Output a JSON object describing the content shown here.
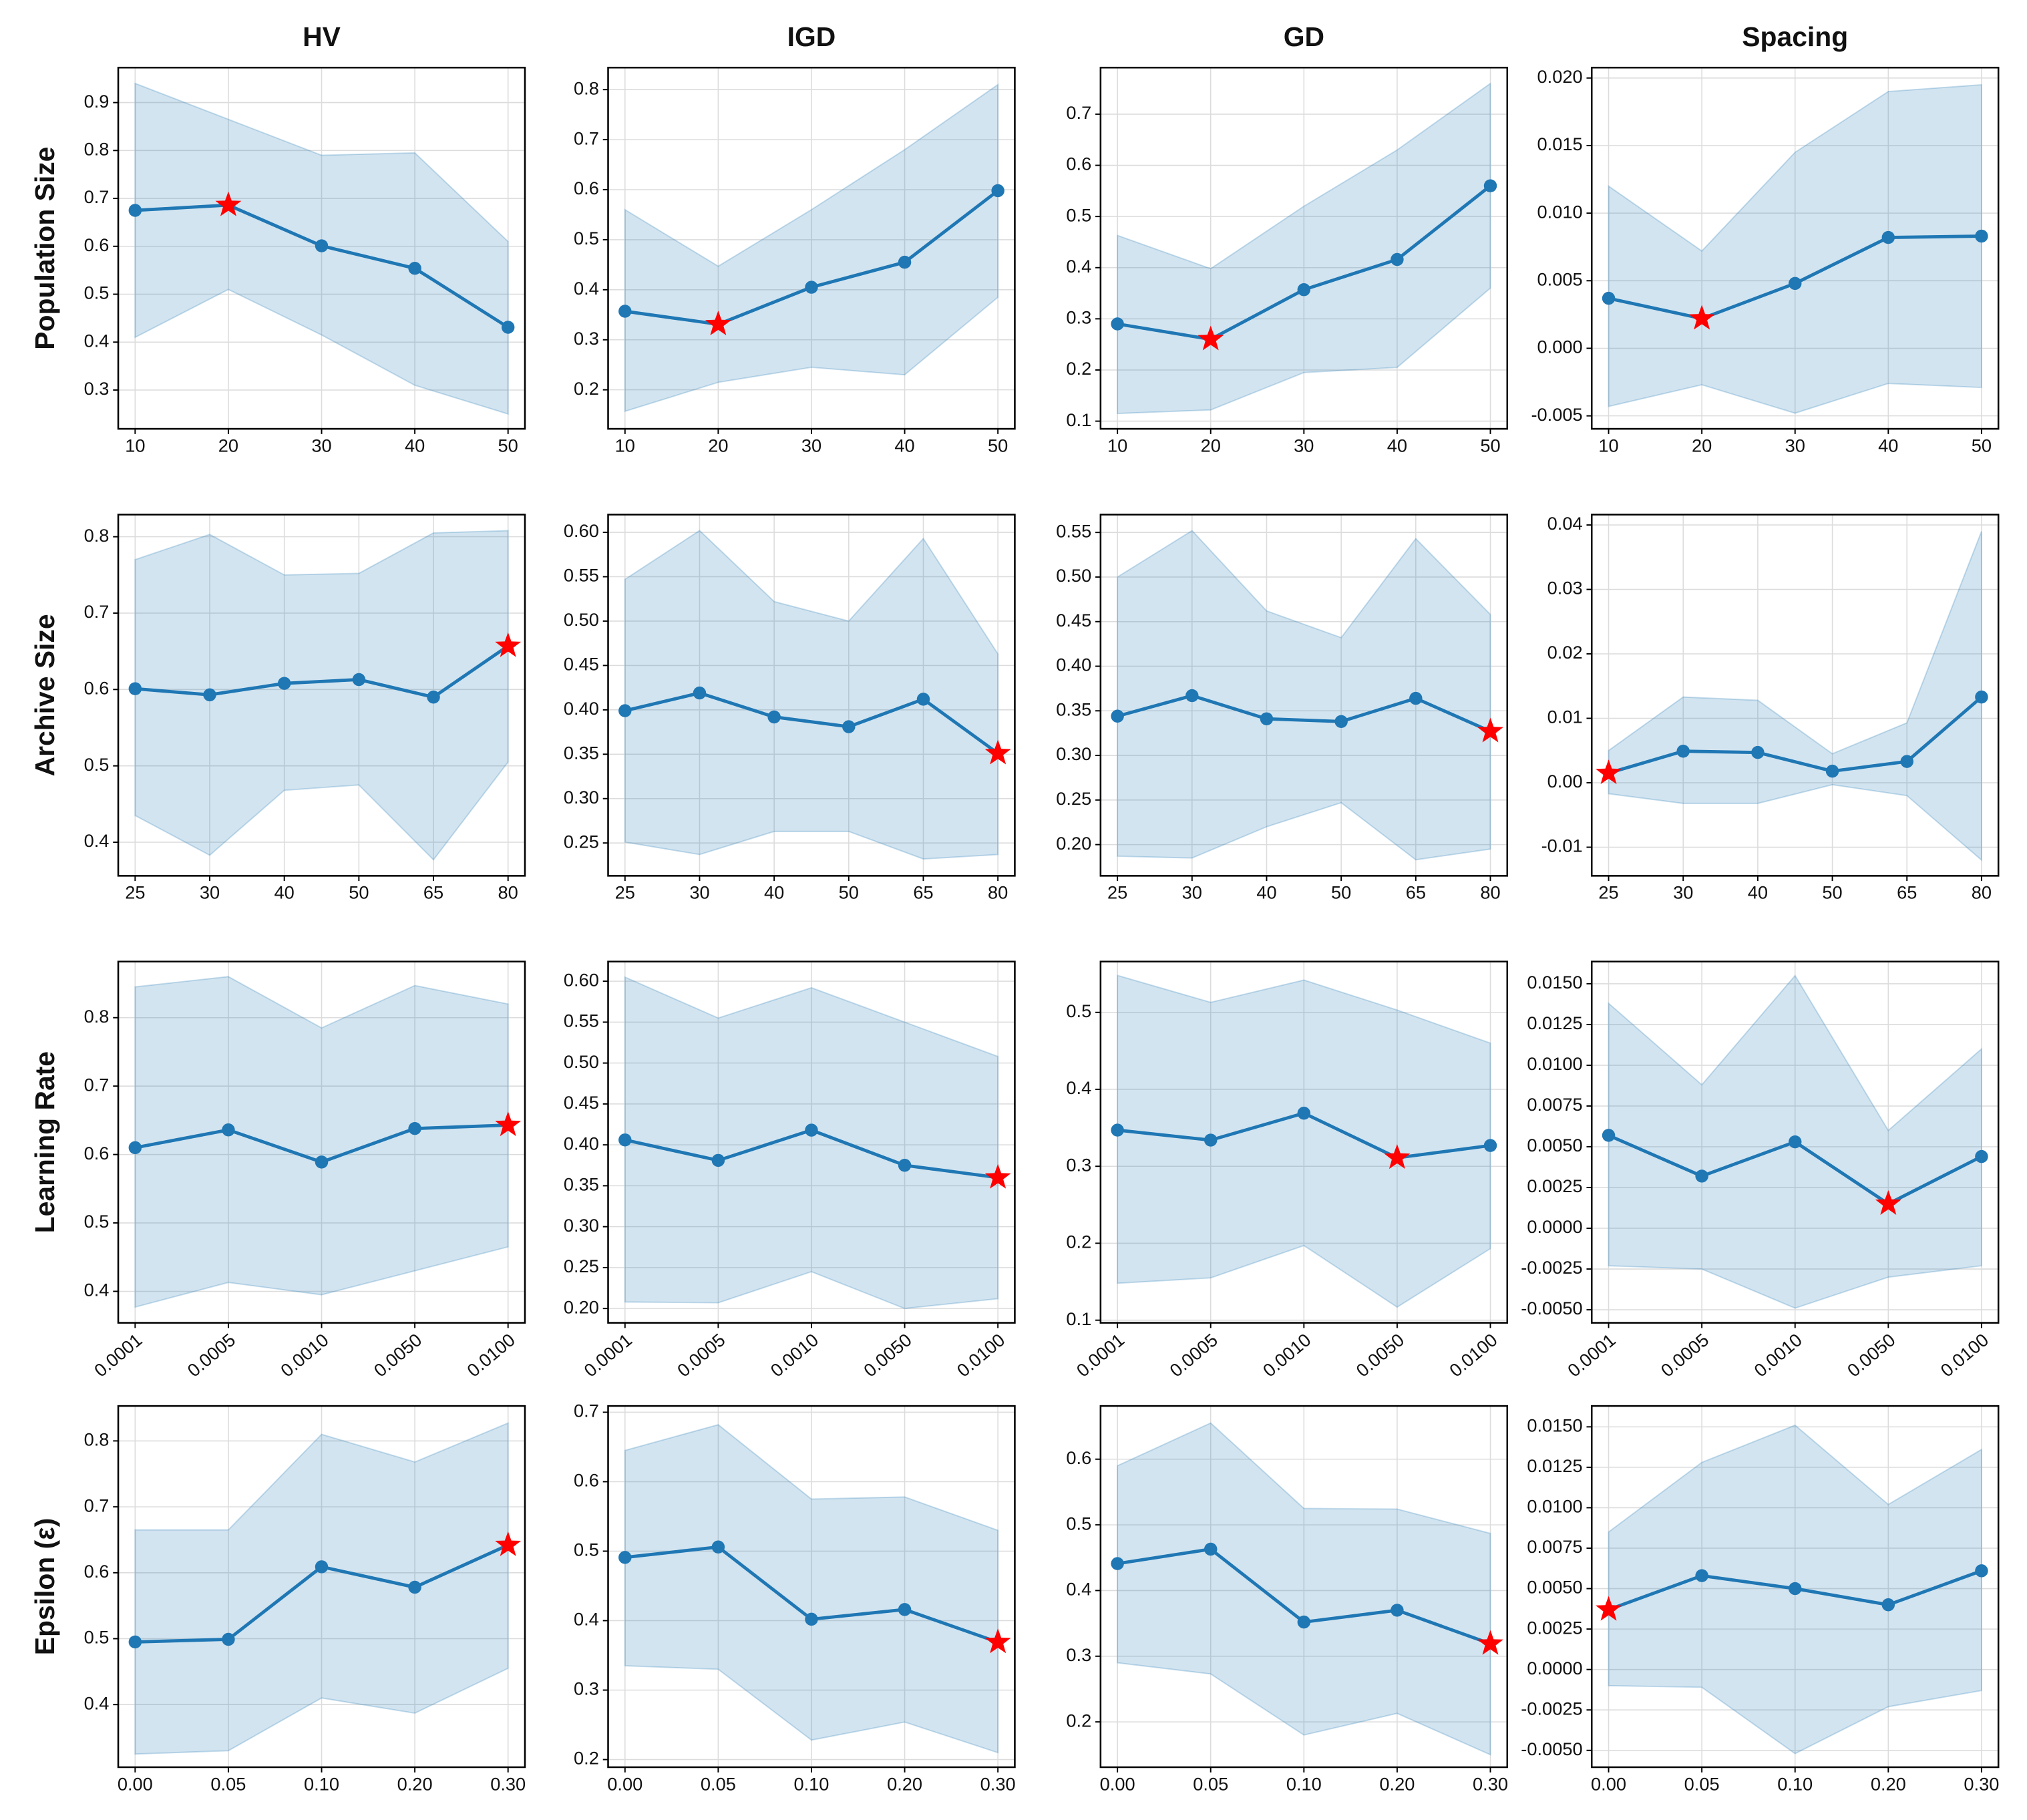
{
  "column_titles": [
    "HV",
    "IGD",
    "GD",
    "Spacing"
  ],
  "row_labels": [
    "Population Size",
    "Archive Size",
    "Learning Rate",
    "Epsilon (ε)"
  ],
  "chart_data": [
    {
      "type": "line",
      "categories": [
        "10",
        "20",
        "30",
        "40",
        "50"
      ],
      "values": [
        0.675,
        0.686,
        0.601,
        0.554,
        0.431
      ],
      "upper": [
        0.94,
        0.865,
        0.79,
        0.795,
        0.61
      ],
      "lower": [
        0.41,
        0.51,
        0.415,
        0.31,
        0.25
      ],
      "best_index": 1,
      "color": "#1f77b4",
      "best_color": "#ff0000",
      "grid": true,
      "ylim": [
        0.219,
        0.973
      ],
      "yticks": [
        0.3,
        0.4,
        0.5,
        0.6,
        0.7,
        0.8,
        0.9
      ]
    },
    {
      "type": "line",
      "categories": [
        "10",
        "20",
        "30",
        "40",
        "50"
      ],
      "values": [
        0.357,
        0.331,
        0.405,
        0.455,
        0.598
      ],
      "upper": [
        0.56,
        0.447,
        0.56,
        0.68,
        0.81
      ],
      "lower": [
        0.157,
        0.215,
        0.245,
        0.23,
        0.385
      ],
      "best_index": 1,
      "color": "#1f77b4",
      "best_color": "#ff0000",
      "grid": true,
      "ylim": [
        0.122,
        0.844
      ],
      "yticks": [
        0.2,
        0.3,
        0.4,
        0.5,
        0.6,
        0.7,
        0.8
      ]
    },
    {
      "type": "line",
      "categories": [
        "10",
        "20",
        "30",
        "40",
        "50"
      ],
      "values": [
        0.29,
        0.26,
        0.357,
        0.416,
        0.56
      ],
      "upper": [
        0.463,
        0.398,
        0.52,
        0.63,
        0.76
      ],
      "lower": [
        0.115,
        0.122,
        0.195,
        0.205,
        0.36
      ],
      "best_index": 1,
      "color": "#1f77b4",
      "best_color": "#ff0000",
      "grid": true,
      "ylim": [
        0.085,
        0.791
      ],
      "yticks": [
        0.1,
        0.2,
        0.3,
        0.4,
        0.5,
        0.6,
        0.7
      ]
    },
    {
      "type": "line",
      "categories": [
        "10",
        "20",
        "30",
        "40",
        "50"
      ],
      "values": [
        0.0037,
        0.0022,
        0.0048,
        0.0082,
        0.0083
      ],
      "upper": [
        0.012,
        0.0072,
        0.0145,
        0.019,
        0.0195
      ],
      "lower": [
        -0.0043,
        -0.0027,
        -0.0048,
        -0.0026,
        -0.0029
      ],
      "best_index": 1,
      "color": "#1f77b4",
      "best_color": "#ff0000",
      "grid": true,
      "ylim": [
        -0.00596,
        0.02077
      ],
      "yticks": [
        -0.005,
        {
          "value": 0,
          "label": "0.000"
        },
        {
          "value": 0.005,
          "label": "0.005"
        },
        {
          "value": 0.01,
          "label": "0.010"
        },
        {
          "value": 0.015,
          "label": "0.015"
        },
        {
          "value": 0.02,
          "label": "0.020"
        }
      ]
    },
    {
      "type": "line",
      "categories": [
        "25",
        "30",
        "40",
        "50",
        "65",
        "80"
      ],
      "values": [
        0.601,
        0.593,
        0.608,
        0.613,
        0.59,
        0.657
      ],
      "upper": [
        0.77,
        0.803,
        0.75,
        0.752,
        0.805,
        0.808
      ],
      "lower": [
        0.435,
        0.383,
        0.468,
        0.475,
        0.377,
        0.505
      ],
      "best_index": 5,
      "color": "#1f77b4",
      "best_color": "#ff0000",
      "grid": true,
      "ylim": [
        0.356,
        0.829
      ],
      "yticks": [
        0.4,
        0.5,
        0.6,
        0.7,
        0.8
      ]
    },
    {
      "type": "line",
      "categories": [
        "25",
        "30",
        "40",
        "50",
        "65",
        "80"
      ],
      "values": [
        0.399,
        0.419,
        0.392,
        0.381,
        0.412,
        0.351
      ],
      "upper": [
        0.547,
        0.602,
        0.522,
        0.5,
        0.593,
        0.463
      ],
      "lower": [
        0.251,
        0.237,
        0.263,
        0.263,
        0.232,
        0.237
      ],
      "best_index": 5,
      "color": "#1f77b4",
      "best_color": "#ff0000",
      "grid": true,
      "ylim": [
        0.213,
        0.62
      ],
      "yticks": [
        {
          "value": 0.25,
          "label": "0.25"
        },
        {
          "value": 0.3,
          "label": "0.30"
        },
        0.35,
        {
          "value": 0.4,
          "label": "0.40"
        },
        0.45,
        {
          "value": 0.5,
          "label": "0.50"
        },
        0.55,
        {
          "value": 0.6,
          "label": "0.60"
        }
      ]
    },
    {
      "type": "line",
      "categories": [
        "25",
        "30",
        "40",
        "50",
        "65",
        "80"
      ],
      "values": [
        0.344,
        0.367,
        0.341,
        0.338,
        0.364,
        0.327
      ],
      "upper": [
        0.5,
        0.552,
        0.462,
        0.432,
        0.543,
        0.458
      ],
      "lower": [
        0.187,
        0.185,
        0.22,
        0.247,
        0.183,
        0.195
      ],
      "best_index": 5,
      "color": "#1f77b4",
      "best_color": "#ff0000",
      "grid": true,
      "ylim": [
        0.165,
        0.57
      ],
      "yticks": [
        {
          "value": 0.2,
          "label": "0.20"
        },
        0.25,
        {
          "value": 0.3,
          "label": "0.30"
        },
        0.35,
        {
          "value": 0.4,
          "label": "0.40"
        },
        0.45,
        {
          "value": 0.5,
          "label": "0.50"
        },
        0.55
      ]
    },
    {
      "type": "line",
      "categories": [
        "25",
        "30",
        "40",
        "50",
        "65",
        "80"
      ],
      "values": [
        0.0015,
        0.0049,
        0.0047,
        0.0018,
        0.0033,
        0.0133
      ],
      "upper": [
        0.005,
        0.0133,
        0.0128,
        0.0045,
        0.0093,
        0.039
      ],
      "lower": [
        -0.0017,
        -0.0032,
        -0.0032,
        -0.0003,
        -0.002,
        -0.012
      ],
      "best_index": 0,
      "color": "#1f77b4",
      "best_color": "#ff0000",
      "grid": true,
      "ylim": [
        -0.01444,
        0.04161
      ],
      "yticks": [
        -0.01,
        {
          "value": 0,
          "label": "0.00"
        },
        0.01,
        0.02,
        0.03,
        0.04
      ]
    },
    {
      "type": "line",
      "categories": [
        "0.0001",
        "0.0005",
        "0.0010",
        "0.0050",
        "0.0100"
      ],
      "values": [
        0.61,
        0.636,
        0.589,
        0.638,
        0.643
      ],
      "upper": [
        0.845,
        0.86,
        0.785,
        0.847,
        0.82
      ],
      "lower": [
        0.377,
        0.413,
        0.395,
        0.43,
        0.465
      ],
      "best_index": 4,
      "color": "#1f77b4",
      "best_color": "#ff0000",
      "grid": true,
      "ylim": [
        0.354,
        0.882
      ],
      "yticks": [
        0.4,
        0.5,
        0.6,
        0.7,
        0.8
      ]
    },
    {
      "type": "line",
      "categories": [
        "0.0001",
        "0.0005",
        "0.0010",
        "0.0050",
        "0.0100"
      ],
      "values": [
        0.406,
        0.381,
        0.418,
        0.375,
        0.36
      ],
      "upper": [
        0.605,
        0.555,
        0.592,
        0.55,
        0.508
      ],
      "lower": [
        0.208,
        0.207,
        0.245,
        0.2,
        0.212
      ],
      "best_index": 4,
      "color": "#1f77b4",
      "best_color": "#ff0000",
      "grid": true,
      "ylim": [
        0.1825,
        0.624
      ],
      "yticks": [
        {
          "value": 0.2,
          "label": "0.20"
        },
        0.25,
        {
          "value": 0.3,
          "label": "0.30"
        },
        0.35,
        {
          "value": 0.4,
          "label": "0.40"
        },
        0.45,
        {
          "value": 0.5,
          "label": "0.50"
        },
        0.55,
        {
          "value": 0.6,
          "label": "0.60"
        }
      ]
    },
    {
      "type": "line",
      "categories": [
        "0.0001",
        "0.0005",
        "0.0010",
        "0.0050",
        "0.0100"
      ],
      "values": [
        0.347,
        0.334,
        0.369,
        0.311,
        0.327
      ],
      "upper": [
        0.548,
        0.513,
        0.542,
        0.503,
        0.46
      ],
      "lower": [
        0.148,
        0.155,
        0.197,
        0.117,
        0.193
      ],
      "best_index": 3,
      "color": "#1f77b4",
      "best_color": "#ff0000",
      "grid": true,
      "ylim": [
        0.0966,
        0.566
      ],
      "yticks": [
        0.1,
        0.2,
        0.3,
        0.4,
        0.5
      ]
    },
    {
      "type": "line",
      "categories": [
        "0.0001",
        "0.0005",
        "0.0010",
        "0.0050",
        "0.0100"
      ],
      "values": [
        0.0057,
        0.0032,
        0.0053,
        0.0015,
        0.0044
      ],
      "upper": [
        0.0138,
        0.0088,
        0.0155,
        0.006,
        0.011
      ],
      "lower": [
        -0.0023,
        -0.0025,
        -0.0049,
        -0.003,
        -0.0023
      ],
      "best_index": 3,
      "color": "#1f77b4",
      "best_color": "#ff0000",
      "grid": true,
      "ylim": [
        -0.0058,
        0.01636
      ],
      "yticks": [
        {
          "value": -0.005,
          "label": "-0.0050"
        },
        -0.0025,
        {
          "value": 0,
          "label": "0.0000"
        },
        0.0025,
        {
          "value": 0.005,
          "label": "0.0050"
        },
        0.0075,
        {
          "value": 0.01,
          "label": "0.0100"
        },
        0.0125,
        {
          "value": 0.015,
          "label": "0.0150"
        }
      ]
    },
    {
      "type": "line",
      "categories": [
        "0.00",
        "0.05",
        "0.10",
        "0.20",
        "0.30"
      ],
      "values": [
        0.495,
        0.499,
        0.609,
        0.578,
        0.642
      ],
      "upper": [
        0.665,
        0.665,
        0.81,
        0.768,
        0.827
      ],
      "lower": [
        0.325,
        0.33,
        0.41,
        0.387,
        0.455
      ],
      "best_index": 4,
      "color": "#1f77b4",
      "best_color": "#ff0000",
      "grid": true,
      "ylim": [
        0.305,
        0.853
      ],
      "yticks": [
        0.4,
        0.5,
        0.6,
        0.7,
        0.8
      ]
    },
    {
      "type": "line",
      "categories": [
        "0.00",
        "0.05",
        "0.10",
        "0.20",
        "0.30"
      ],
      "values": [
        0.491,
        0.506,
        0.402,
        0.416,
        0.369
      ],
      "upper": [
        0.645,
        0.682,
        0.575,
        0.578,
        0.53
      ],
      "lower": [
        0.335,
        0.33,
        0.228,
        0.254,
        0.21
      ],
      "best_index": 4,
      "color": "#1f77b4",
      "best_color": "#ff0000",
      "grid": true,
      "ylim": [
        0.189,
        0.709
      ],
      "yticks": [
        0.2,
        0.3,
        0.4,
        0.5,
        0.6,
        0.7
      ]
    },
    {
      "type": "line",
      "categories": [
        "0.00",
        "0.05",
        "0.10",
        "0.20",
        "0.30"
      ],
      "values": [
        0.441,
        0.463,
        0.352,
        0.37,
        0.319
      ],
      "upper": [
        0.59,
        0.655,
        0.525,
        0.524,
        0.487
      ],
      "lower": [
        0.29,
        0.273,
        0.18,
        0.213,
        0.15
      ],
      "best_index": 4,
      "color": "#1f77b4",
      "best_color": "#ff0000",
      "grid": true,
      "ylim": [
        0.131,
        0.681
      ],
      "yticks": [
        0.2,
        0.3,
        0.4,
        0.5,
        0.6
      ]
    },
    {
      "type": "line",
      "categories": [
        "0.00",
        "0.05",
        "0.10",
        "0.20",
        "0.30"
      ],
      "values": [
        0.0037,
        0.0058,
        0.005,
        0.004,
        0.0061
      ],
      "upper": [
        0.0085,
        0.0128,
        0.0151,
        0.0102,
        0.0136
      ],
      "lower": [
        -0.001,
        -0.0011,
        -0.0052,
        -0.0023,
        -0.0013
      ],
      "best_index": 0,
      "color": "#1f77b4",
      "best_color": "#ff0000",
      "grid": true,
      "ylim": [
        -0.00604,
        0.01629
      ],
      "yticks": [
        {
          "value": -0.005,
          "label": "-0.0050"
        },
        -0.0025,
        {
          "value": 0,
          "label": "0.0000"
        },
        0.0025,
        {
          "value": 0.005,
          "label": "0.0050"
        },
        0.0075,
        {
          "value": 0.01,
          "label": "0.0100"
        },
        0.0125,
        {
          "value": 0.015,
          "label": "0.0150"
        }
      ]
    }
  ]
}
